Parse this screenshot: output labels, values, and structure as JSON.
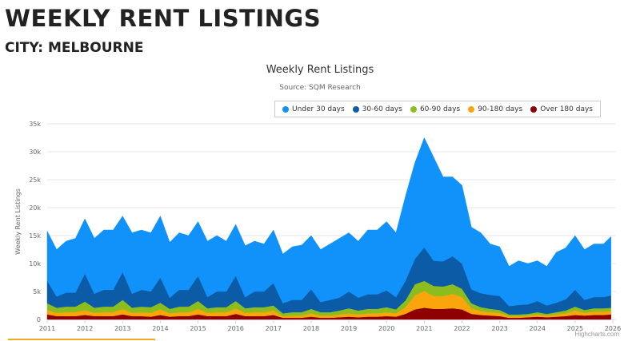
{
  "header": {
    "title": "WEEKLY RENT LISTINGS",
    "subtitle": "CITY: MELBOURNE"
  },
  "chart_data": {
    "type": "area",
    "stacked": true,
    "title": "Weekly Rent Listings",
    "subtitle": "Source: SQM Research",
    "xlabel": "",
    "ylabel": "Weekly Rent Listings",
    "xlim": [
      2011,
      2026
    ],
    "ylim": [
      0,
      35000
    ],
    "x_ticks": [
      "2011",
      "2012",
      "2013",
      "2014",
      "2015",
      "2016",
      "2017",
      "2018",
      "2019",
      "2020",
      "2021",
      "2022",
      "2023",
      "2024",
      "2025",
      "2026"
    ],
    "y_ticks": [
      "0",
      "5k",
      "10k",
      "15k",
      "20k",
      "25k",
      "30k",
      "35k"
    ],
    "y_tick_values": [
      0,
      5000,
      10000,
      15000,
      20000,
      25000,
      30000,
      35000
    ],
    "grid": true,
    "legend_position": "top-right",
    "credit": "Highcharts.com",
    "x": [
      2011,
      2011.25,
      2011.5,
      2011.75,
      2012,
      2012.25,
      2012.5,
      2012.75,
      2013,
      2013.25,
      2013.5,
      2013.75,
      2014,
      2014.25,
      2014.5,
      2014.75,
      2015,
      2015.25,
      2015.5,
      2015.75,
      2016,
      2016.25,
      2016.5,
      2016.75,
      2017,
      2017.25,
      2017.5,
      2017.75,
      2018,
      2018.25,
      2018.5,
      2018.75,
      2019,
      2019.25,
      2019.5,
      2019.75,
      2020,
      2020.25,
      2020.5,
      2020.75,
      2021,
      2021.25,
      2021.5,
      2021.75,
      2022,
      2022.25,
      2022.5,
      2022.75,
      2023,
      2023.25,
      2023.5,
      2023.75,
      2024,
      2024.25,
      2024.5,
      2024.75,
      2025,
      2025.25,
      2025.5,
      2025.75,
      2025.95
    ],
    "series": [
      {
        "name": "Under 30 days",
        "color": "#1191fa",
        "values": [
          8900,
          8400,
          9200,
          9700,
          9800,
          9900,
          10700,
          10700,
          10000,
          10900,
          10700,
          10500,
          11000,
          9900,
          10200,
          9700,
          9700,
          10000,
          10000,
          9000,
          9200,
          9200,
          9000,
          8500,
          9500,
          8800,
          9500,
          9800,
          9600,
          9400,
          10000,
          10600,
          10500,
          10100,
          11500,
          11500,
          12300,
          11500,
          15100,
          17200,
          19600,
          18500,
          15100,
          14200,
          14000,
          11100,
          10800,
          9100,
          8800,
          7100,
          7900,
          7300,
          7200,
          7000,
          9000,
          9200,
          9700,
          9000,
          9500,
          9500,
          10500
        ]
      },
      {
        "name": "30-60 days",
        "color": "#0b5ba6",
        "values": [
          4000,
          2000,
          2500,
          2500,
          5000,
          2500,
          3000,
          3000,
          5000,
          2500,
          3000,
          2800,
          4500,
          2000,
          3000,
          3000,
          4500,
          2000,
          2800,
          2800,
          4500,
          2000,
          2800,
          2800,
          4000,
          1800,
          2200,
          2200,
          3500,
          1800,
          2200,
          2300,
          3000,
          2300,
          2600,
          2600,
          3000,
          2200,
          3500,
          4500,
          6000,
          4500,
          4500,
          5000,
          4500,
          2500,
          2500,
          2500,
          2500,
          1500,
          1700,
          1700,
          2000,
          1500,
          1700,
          2000,
          3000,
          1800,
          2000,
          2000,
          2200
        ]
      },
      {
        "name": "60-90 days",
        "color": "#8cbd1e",
        "values": [
          1200,
          900,
          1000,
          1000,
          1500,
          900,
          1000,
          1000,
          1600,
          900,
          1000,
          1000,
          1200,
          800,
          1000,
          1000,
          1400,
          800,
          900,
          900,
          1300,
          800,
          900,
          900,
          900,
          500,
          600,
          600,
          800,
          600,
          600,
          700,
          900,
          700,
          800,
          800,
          900,
          700,
          1200,
          2000,
          1800,
          1800,
          1700,
          1700,
          1500,
          900,
          700,
          600,
          500,
          300,
          300,
          300,
          400,
          300,
          400,
          500,
          700,
          500,
          600,
          600,
          600
        ]
      },
      {
        "name": "90-180 days",
        "color": "#fba50d",
        "values": [
          800,
          600,
          700,
          700,
          900,
          600,
          700,
          700,
          1000,
          600,
          700,
          700,
          1000,
          600,
          700,
          700,
          1000,
          600,
          700,
          700,
          1000,
          600,
          700,
          700,
          800,
          300,
          400,
          400,
          600,
          400,
          400,
          500,
          600,
          500,
          600,
          600,
          700,
          600,
          1200,
          2500,
          3000,
          2300,
          2300,
          2600,
          2200,
          1000,
          700,
          600,
          600,
          300,
          300,
          300,
          400,
          300,
          400,
          500,
          800,
          500,
          600,
          600,
          600
        ]
      },
      {
        "name": "Over 180 days",
        "color": "#8c0000",
        "values": [
          900,
          600,
          600,
          600,
          800,
          600,
          600,
          600,
          900,
          600,
          600,
          500,
          800,
          500,
          600,
          600,
          900,
          600,
          600,
          600,
          1000,
          600,
          600,
          600,
          800,
          300,
          300,
          300,
          500,
          300,
          300,
          400,
          500,
          400,
          500,
          500,
          600,
          500,
          1000,
          1800,
          2100,
          1900,
          1900,
          2000,
          1800,
          1000,
          800,
          700,
          600,
          300,
          300,
          400,
          500,
          400,
          500,
          600,
          800,
          700,
          800,
          800,
          900
        ]
      }
    ]
  }
}
